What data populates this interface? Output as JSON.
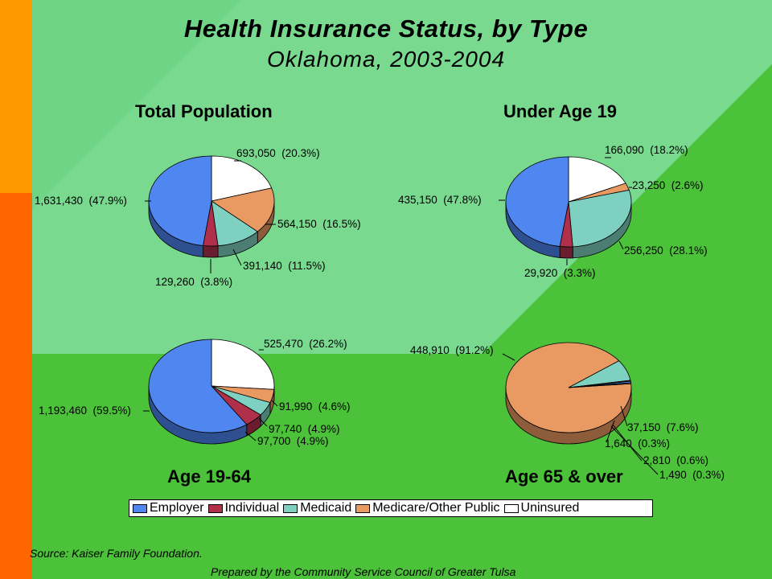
{
  "title": "Health Insurance Status, by Type",
  "subtitle": "Oklahoma, 2003-2004",
  "colors": {
    "Employer": "#4f86f0",
    "Individual": "#b0304c",
    "Medicaid": "#7ed0c0",
    "Medicare/Other Public": "#e99a62",
    "Uninsured": "#ffffff"
  },
  "chart_data": [
    {
      "type": "pie",
      "title": "Total Population",
      "slices": [
        {
          "category": "Uninsured",
          "value": 693050,
          "label": "693,050  (20.3%)"
        },
        {
          "category": "Medicare/Other Public",
          "value": 564150,
          "label": "564,150  (16.5%)"
        },
        {
          "category": "Medicaid",
          "value": 391140,
          "label": "391,140  (11.5%)"
        },
        {
          "category": "Individual",
          "value": 129260,
          "label": "129,260  (3.8%)"
        },
        {
          "category": "Employer",
          "value": 1631430,
          "label": "1,631,430  (47.9%)"
        }
      ]
    },
    {
      "type": "pie",
      "title": "Under Age 19",
      "slices": [
        {
          "category": "Uninsured",
          "value": 166090,
          "label": "166,090  (18.2%)"
        },
        {
          "category": "Medicare/Other Public",
          "value": 23250,
          "label": "23,250  (2.6%)"
        },
        {
          "category": "Medicaid",
          "value": 256250,
          "label": "256,250  (28.1%)"
        },
        {
          "category": "Individual",
          "value": 29920,
          "label": "29,920  (3.3%)"
        },
        {
          "category": "Employer",
          "value": 435150,
          "label": "435,150  (47.8%)"
        }
      ]
    },
    {
      "type": "pie",
      "title": "Age 19-64",
      "slices": [
        {
          "category": "Uninsured",
          "value": 525470,
          "label": "525,470  (26.2%)"
        },
        {
          "category": "Medicare/Other Public",
          "value": 91990,
          "label": "91,990  (4.6%)"
        },
        {
          "category": "Medicaid",
          "value": 97740,
          "label": "97,740  (4.9%)"
        },
        {
          "category": "Individual",
          "value": 97700,
          "label": "97,700  (4.9%)"
        },
        {
          "category": "Employer",
          "value": 1193460,
          "label": "1,193,460  (59.5%)"
        }
      ]
    },
    {
      "type": "pie",
      "title": "Age 65 & over",
      "slices": [
        {
          "category": "Medicare/Other Public",
          "value": 448910,
          "label": "448,910  (91.2%)"
        },
        {
          "category": "Medicaid",
          "value": 37150,
          "label": "37,150  (7.6%)"
        },
        {
          "category": "Individual",
          "value": 1640,
          "label": "1,640  (0.3%)"
        },
        {
          "category": "Employer",
          "value": 2810,
          "label": "2,810  (0.6%)"
        },
        {
          "category": "Uninsured",
          "value": 1490,
          "label": "1,490  (0.3%)"
        }
      ]
    }
  ],
  "legend": [
    "Employer",
    "Individual",
    "Medicaid",
    "Medicare/Other Public",
    "Uninsured"
  ],
  "source": "Source:  Kaiser Family Foundation.",
  "prepared_by": "Prepared by the Community Service Council of Greater Tulsa"
}
